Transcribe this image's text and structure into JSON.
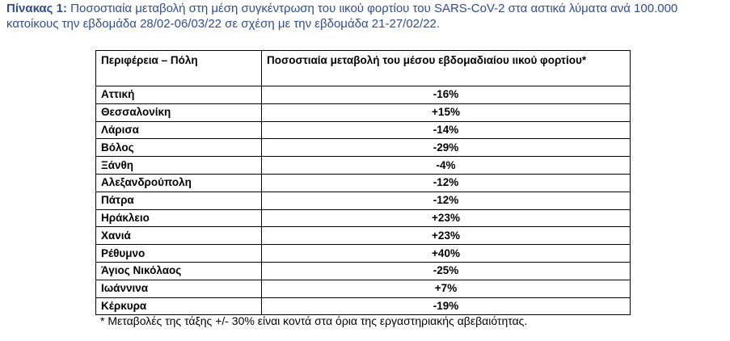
{
  "caption": {
    "label": "Πίνακας 1:",
    "text": "Ποσοστιαία μεταβολή στη μέση συγκέντρωση του ιικού φορτίου του SARS-CoV-2 στα αστικά λύματα ανά 100.000 κατοίκους την εβδομάδα 28/02-06/03/22 σε σχέση με την εβδομάδα 21-27/02/22."
  },
  "table": {
    "headers": [
      "Περιφέρεια – Πόλη",
      "Ποσοστιαία μεταβολή του μέσου εβδομαδιαίου ιικού φορτίου*"
    ],
    "rows": [
      [
        "Αττική",
        "-16%"
      ],
      [
        "Θεσσαλονίκη",
        "+15%"
      ],
      [
        "Λάρισα",
        "-14%"
      ],
      [
        "Βόλος",
        "-29%"
      ],
      [
        "Ξάνθη",
        "-4%"
      ],
      [
        "Αλεξανδρούπολη",
        "-12%"
      ],
      [
        "Πάτρα",
        "-12%"
      ],
      [
        "Ηράκλειο",
        "+23%"
      ],
      [
        "Χανιά",
        "+23%"
      ],
      [
        "Ρέθυμνο",
        "+40%"
      ],
      [
        "Άγιος Νικόλαος",
        "-25%"
      ],
      [
        "Ιωάννινα",
        "+7%"
      ],
      [
        "Κέρκυρα",
        "-19%"
      ]
    ]
  },
  "footnote": "* Μεταβολές της τάξης +/- 30% είναι κοντά στα όρια της εργαστηριακής αβεβαιότητας."
}
